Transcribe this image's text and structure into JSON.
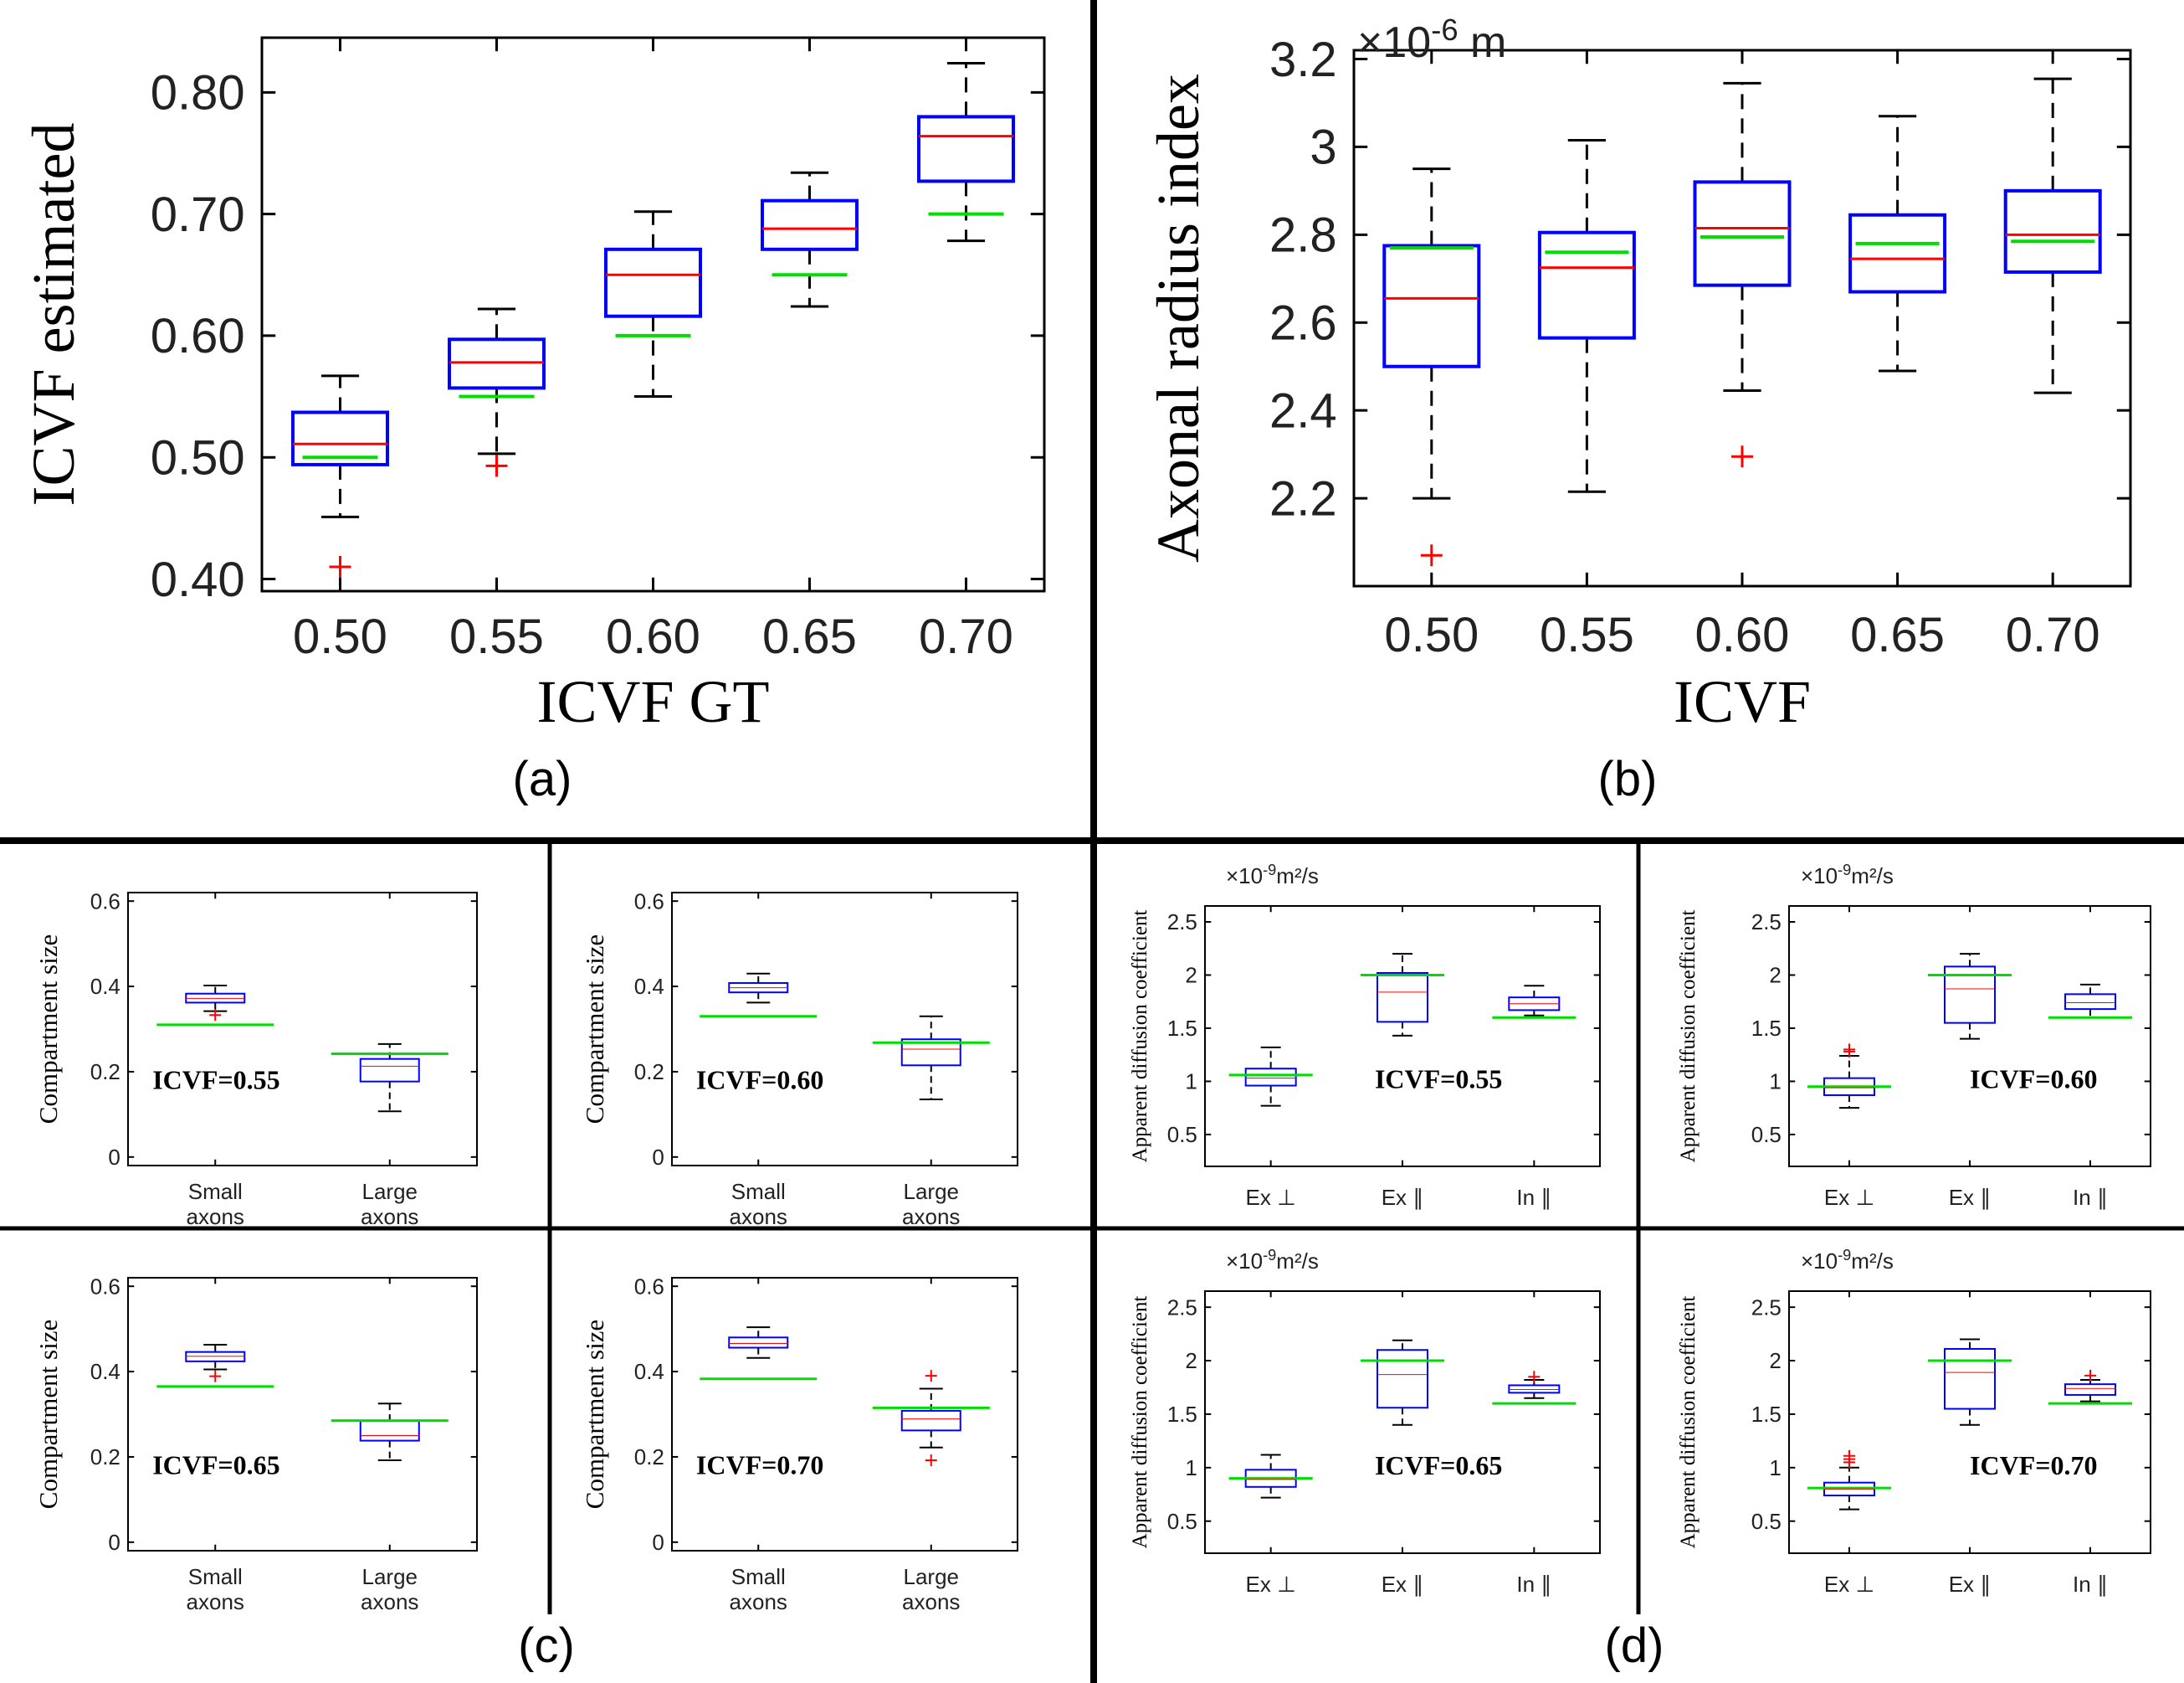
{
  "colors": {
    "box": "#0000ff",
    "median": "#ff0000",
    "gt": "#00dd00",
    "outlier": "#ff0000",
    "whisker": "#000000"
  },
  "panel_labels": {
    "a": "(a)",
    "b": "(b)",
    "c": "(c)",
    "d": "(d)"
  },
  "chart_data": [
    {
      "id": "a",
      "type": "box",
      "ylabel": "ICVF estimated",
      "xlabel": "ICVF GT",
      "ylim": [
        0.39,
        0.845
      ],
      "yticks": [
        0.4,
        0.5,
        0.6,
        0.7,
        0.8
      ],
      "ytick_labels": [
        "0.40",
        "0.50",
        "0.60",
        "0.70",
        "0.80"
      ],
      "categories": [
        "0.50",
        "0.55",
        "0.60",
        "0.65",
        "0.70"
      ],
      "boxes": [
        {
          "wl": 0.451,
          "q1": 0.494,
          "med": 0.511,
          "q3": 0.537,
          "wh": 0.567,
          "gt": 0.5,
          "outliers": [
            0.41
          ]
        },
        {
          "wl": 0.503,
          "q1": 0.557,
          "med": 0.578,
          "q3": 0.597,
          "wh": 0.622,
          "gt": 0.55,
          "outliers": [
            0.493
          ]
        },
        {
          "wl": 0.55,
          "q1": 0.616,
          "med": 0.65,
          "q3": 0.671,
          "wh": 0.702,
          "gt": 0.6,
          "outliers": []
        },
        {
          "wl": 0.624,
          "q1": 0.671,
          "med": 0.688,
          "q3": 0.711,
          "wh": 0.734,
          "gt": 0.65,
          "outliers": []
        },
        {
          "wl": 0.678,
          "q1": 0.727,
          "med": 0.764,
          "q3": 0.78,
          "wh": 0.824,
          "gt": 0.7,
          "outliers": []
        }
      ]
    },
    {
      "id": "b",
      "type": "box",
      "ylabel": "Axonal radius index",
      "xlabel": "ICVF",
      "multiplier": "×10",
      "multiplier_exp": "-6",
      "multiplier_unit": " m",
      "ylim": [
        2.0,
        3.22
      ],
      "yticks": [
        2.2,
        2.4,
        2.6,
        2.8,
        3.0,
        3.2
      ],
      "ytick_labels": [
        "2.2",
        "2.4",
        "2.6",
        "2.8",
        "3",
        "3.2"
      ],
      "categories": [
        "0.50",
        "0.55",
        "0.60",
        "0.65",
        "0.70"
      ],
      "boxes": [
        {
          "wl": 2.2,
          "q1": 2.5,
          "med": 2.655,
          "q3": 2.775,
          "wh": 2.95,
          "gt": 2.77,
          "outliers": [
            2.07
          ]
        },
        {
          "wl": 2.215,
          "q1": 2.565,
          "med": 2.725,
          "q3": 2.805,
          "wh": 3.015,
          "gt": 2.76,
          "outliers": []
        },
        {
          "wl": 2.445,
          "q1": 2.685,
          "med": 2.815,
          "q3": 2.92,
          "wh": 3.145,
          "gt": 2.795,
          "outliers": [
            2.295
          ]
        },
        {
          "wl": 2.49,
          "q1": 2.67,
          "med": 2.745,
          "q3": 2.845,
          "wh": 3.07,
          "gt": 2.78,
          "outliers": []
        },
        {
          "wl": 2.44,
          "q1": 2.715,
          "med": 2.8,
          "q3": 2.9,
          "wh": 3.155,
          "gt": 2.785,
          "outliers": []
        }
      ]
    },
    {
      "id": "c1",
      "type": "box",
      "ylabel": "Compartment size",
      "annotation": "ICVF=0.55",
      "ylim": [
        -0.02,
        0.62
      ],
      "yticks": [
        0,
        0.2,
        0.4,
        0.6
      ],
      "ytick_labels": [
        "0",
        "0.2",
        "0.4",
        "0.6"
      ],
      "categories": [
        [
          "Small",
          "axons"
        ],
        [
          "Large",
          "axons"
        ]
      ],
      "boxes": [
        {
          "wl": 0.342,
          "q1": 0.362,
          "med": 0.372,
          "q3": 0.383,
          "wh": 0.402,
          "gt": 0.31,
          "outliers": [
            0.333
          ]
        },
        {
          "wl": 0.107,
          "q1": 0.177,
          "med": 0.213,
          "q3": 0.23,
          "wh": 0.265,
          "gt": 0.242,
          "outliers": []
        }
      ]
    },
    {
      "id": "c2",
      "type": "box",
      "ylabel": "Compartment size",
      "annotation": "ICVF=0.60",
      "ylim": [
        -0.02,
        0.62
      ],
      "yticks": [
        0,
        0.2,
        0.4,
        0.6
      ],
      "ytick_labels": [
        "0",
        "0.2",
        "0.4",
        "0.6"
      ],
      "categories": [
        [
          "Small",
          "axons"
        ],
        [
          "Large",
          "axons"
        ]
      ],
      "boxes": [
        {
          "wl": 0.362,
          "q1": 0.386,
          "med": 0.397,
          "q3": 0.408,
          "wh": 0.43,
          "gt": 0.33,
          "outliers": []
        },
        {
          "wl": 0.135,
          "q1": 0.215,
          "med": 0.253,
          "q3": 0.276,
          "wh": 0.33,
          "gt": 0.268,
          "outliers": []
        }
      ]
    },
    {
      "id": "c3",
      "type": "box",
      "ylabel": "Compartment size",
      "annotation": "ICVF=0.65",
      "ylim": [
        -0.02,
        0.62
      ],
      "yticks": [
        0,
        0.2,
        0.4,
        0.6
      ],
      "ytick_labels": [
        "0",
        "0.2",
        "0.4",
        "0.6"
      ],
      "categories": [
        [
          "Small",
          "axons"
        ],
        [
          "Large",
          "axons"
        ]
      ],
      "boxes": [
        {
          "wl": 0.405,
          "q1": 0.424,
          "med": 0.436,
          "q3": 0.446,
          "wh": 0.463,
          "gt": 0.365,
          "outliers": [
            0.389
          ]
        },
        {
          "wl": 0.192,
          "q1": 0.238,
          "med": 0.25,
          "q3": 0.284,
          "wh": 0.325,
          "gt": 0.285,
          "outliers": []
        }
      ]
    },
    {
      "id": "c4",
      "type": "box",
      "ylabel": "Compartment size",
      "annotation": "ICVF=0.70",
      "ylim": [
        -0.02,
        0.62
      ],
      "yticks": [
        0,
        0.2,
        0.4,
        0.6
      ],
      "ytick_labels": [
        "0",
        "0.2",
        "0.4",
        "0.6"
      ],
      "categories": [
        [
          "Small",
          "axons"
        ],
        [
          "Large",
          "axons"
        ]
      ],
      "boxes": [
        {
          "wl": 0.432,
          "q1": 0.456,
          "med": 0.466,
          "q3": 0.48,
          "wh": 0.504,
          "gt": 0.383,
          "outliers": []
        },
        {
          "wl": 0.222,
          "q1": 0.262,
          "med": 0.289,
          "q3": 0.308,
          "wh": 0.36,
          "gt": 0.315,
          "outliers": [
            0.39,
            0.192
          ]
        }
      ]
    },
    {
      "id": "d1",
      "type": "box",
      "ylabel": "Apparent diffusion coefficient",
      "annotation": "ICVF=0.55",
      "multiplier": "×10",
      "multiplier_exp": "-9",
      "multiplier_unit": "m²/s",
      "ylim": [
        0.2,
        2.65
      ],
      "yticks": [
        0.5,
        1.0,
        1.5,
        2.0,
        2.5
      ],
      "ytick_labels": [
        "0.5",
        "1",
        "1.5",
        "2",
        "2.5"
      ],
      "categories": [
        "Ex ⊥",
        "Ex ∥",
        "In ∥"
      ],
      "boxes": [
        {
          "wl": 0.77,
          "q1": 0.96,
          "med": 1.03,
          "q3": 1.12,
          "wh": 1.32,
          "gt": 1.06,
          "outliers": []
        },
        {
          "wl": 1.43,
          "q1": 1.56,
          "med": 1.84,
          "q3": 2.02,
          "wh": 2.2,
          "gt": 2.0,
          "outliers": []
        },
        {
          "wl": 1.62,
          "q1": 1.67,
          "med": 1.73,
          "q3": 1.79,
          "wh": 1.9,
          "gt": 1.6,
          "outliers": []
        }
      ]
    },
    {
      "id": "d2",
      "type": "box",
      "ylabel": "Apparent diffusion coefficient",
      "annotation": "ICVF=0.60",
      "multiplier": "×10",
      "multiplier_exp": "-9",
      "multiplier_unit": "m²/s",
      "ylim": [
        0.2,
        2.65
      ],
      "yticks": [
        0.5,
        1.0,
        1.5,
        2.0,
        2.5
      ],
      "ytick_labels": [
        "0.5",
        "1",
        "1.5",
        "2",
        "2.5"
      ],
      "categories": [
        "Ex ⊥",
        "Ex ∥",
        "In ∥"
      ],
      "boxes": [
        {
          "wl": 0.75,
          "q1": 0.87,
          "med": 0.94,
          "q3": 1.03,
          "wh": 1.24,
          "gt": 0.95,
          "outliers": [
            1.28,
            1.3
          ]
        },
        {
          "wl": 1.4,
          "q1": 1.55,
          "med": 1.87,
          "q3": 2.08,
          "wh": 2.2,
          "gt": 2.0,
          "outliers": []
        },
        {
          "wl": 1.6,
          "q1": 1.68,
          "med": 1.74,
          "q3": 1.82,
          "wh": 1.91,
          "gt": 1.6,
          "outliers": []
        }
      ]
    },
    {
      "id": "d3",
      "type": "box",
      "ylabel": "Apparent diffusion coefficient",
      "annotation": "ICVF=0.65",
      "multiplier": "×10",
      "multiplier_exp": "-9",
      "multiplier_unit": "m²/s",
      "ylim": [
        0.2,
        2.65
      ],
      "yticks": [
        0.5,
        1.0,
        1.5,
        2.0,
        2.5
      ],
      "ytick_labels": [
        "0.5",
        "1",
        "1.5",
        "2",
        "2.5"
      ],
      "categories": [
        "Ex ⊥",
        "Ex ∥",
        "In ∥"
      ],
      "boxes": [
        {
          "wl": 0.72,
          "q1": 0.82,
          "med": 0.89,
          "q3": 0.98,
          "wh": 1.12,
          "gt": 0.9,
          "outliers": []
        },
        {
          "wl": 1.4,
          "q1": 1.56,
          "med": 1.87,
          "q3": 2.1,
          "wh": 2.19,
          "gt": 2.0,
          "outliers": []
        },
        {
          "wl": 1.65,
          "q1": 1.7,
          "med": 1.73,
          "q3": 1.77,
          "wh": 1.82,
          "gt": 1.6,
          "outliers": [
            1.85
          ]
        }
      ]
    },
    {
      "id": "d4",
      "type": "box",
      "ylabel": "Apparent diffusion coefficient",
      "annotation": "ICVF=0.70",
      "multiplier": "×10",
      "multiplier_exp": "-9",
      "multiplier_unit": "m²/s",
      "ylim": [
        0.2,
        2.65
      ],
      "yticks": [
        0.5,
        1.0,
        1.5,
        2.0,
        2.5
      ],
      "ytick_labels": [
        "0.5",
        "1",
        "1.5",
        "2",
        "2.5"
      ],
      "categories": [
        "Ex ⊥",
        "Ex ∥",
        "In ∥"
      ],
      "boxes": [
        {
          "wl": 0.61,
          "q1": 0.74,
          "med": 0.8,
          "q3": 0.86,
          "wh": 1.0,
          "gt": 0.81,
          "outliers": [
            1.05,
            1.08,
            1.11
          ]
        },
        {
          "wl": 1.4,
          "q1": 1.55,
          "med": 1.89,
          "q3": 2.11,
          "wh": 2.2,
          "gt": 2.0,
          "outliers": []
        },
        {
          "wl": 1.62,
          "q1": 1.68,
          "med": 1.74,
          "q3": 1.78,
          "wh": 1.82,
          "gt": 1.6,
          "outliers": [
            1.86
          ]
        }
      ]
    }
  ]
}
